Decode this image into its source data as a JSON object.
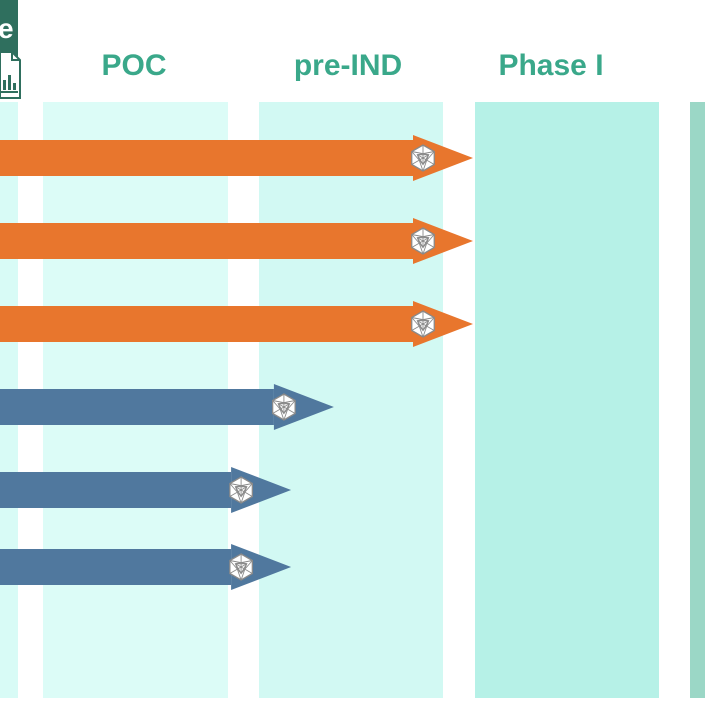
{
  "corner_badge": {
    "letter": "e",
    "badge_color": "#2f6f5e",
    "icon": "document-chart-icon"
  },
  "phases": [
    {
      "key": "partial",
      "label": "",
      "column_color": "#d8fbf6"
    },
    {
      "key": "poc",
      "label": "POC",
      "column_color": "#dcfcf7"
    },
    {
      "key": "pre-ind",
      "label": "pre-IND",
      "column_color": "#d2f9f3"
    },
    {
      "key": "phase-1",
      "label": "Phase I",
      "column_color": "#b6f1e7"
    },
    {
      "key": "next",
      "label": "",
      "column_color": "#9bd7c6"
    }
  ],
  "label_color": "#3aa88a",
  "arrow_colors": {
    "orange": "#e8762d",
    "blue": "#50789e"
  },
  "programs": [
    {
      "color": "orange",
      "reaches": "pre-IND",
      "progress": 1.0,
      "icon": "icosahedron-icon"
    },
    {
      "color": "orange",
      "reaches": "pre-IND",
      "progress": 1.0,
      "icon": "icosahedron-icon"
    },
    {
      "color": "orange",
      "reaches": "pre-IND",
      "progress": 1.0,
      "icon": "icosahedron-icon"
    },
    {
      "color": "blue",
      "reaches": "pre-IND",
      "progress": 0.35,
      "icon": "icosahedron-icon"
    },
    {
      "color": "blue",
      "reaches": "pre-IND",
      "progress": 0.15,
      "icon": "icosahedron-icon"
    },
    {
      "color": "blue",
      "reaches": "pre-IND",
      "progress": 0.15,
      "icon": "icosahedron-icon"
    }
  ]
}
